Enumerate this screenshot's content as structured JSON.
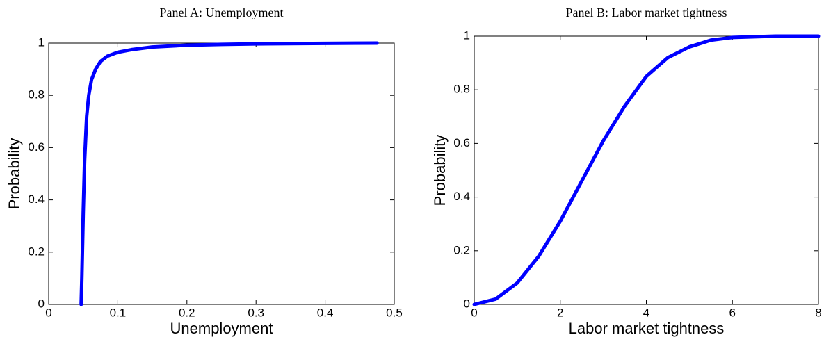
{
  "chart_data": [
    {
      "type": "line",
      "title": "Panel A: Unemployment",
      "xlabel": "Unemployment",
      "ylabel": "Probability",
      "x": [
        0.047,
        0.048,
        0.05,
        0.052,
        0.055,
        0.058,
        0.062,
        0.068,
        0.075,
        0.085,
        0.1,
        0.12,
        0.15,
        0.2,
        0.25,
        0.3,
        0.4,
        0.475
      ],
      "values": [
        0,
        0.1,
        0.35,
        0.55,
        0.72,
        0.8,
        0.86,
        0.9,
        0.93,
        0.95,
        0.965,
        0.975,
        0.985,
        0.992,
        0.995,
        0.997,
        0.999,
        1
      ],
      "color": "#0000ff",
      "xlim": [
        0,
        0.5
      ],
      "xticks": [
        0,
        0.1,
        0.2,
        0.3,
        0.4,
        0.5
      ],
      "ylim": [
        0,
        1
      ],
      "yticks": [
        0,
        0.2,
        0.4,
        0.6,
        0.8,
        1
      ]
    },
    {
      "type": "line",
      "title": "Panel B: Labor market tightness",
      "xlabel": "Labor market tightness",
      "ylabel": "Probability",
      "x": [
        0,
        0.5,
        1,
        1.5,
        2,
        2.5,
        3,
        3.5,
        4,
        4.5,
        5,
        5.5,
        6,
        7,
        8
      ],
      "values": [
        0,
        0.02,
        0.08,
        0.18,
        0.31,
        0.46,
        0.61,
        0.74,
        0.85,
        0.92,
        0.96,
        0.985,
        0.995,
        1,
        1
      ],
      "color": "#0000ff",
      "xlim": [
        0,
        8
      ],
      "xticks": [
        0,
        2,
        4,
        6,
        8
      ],
      "ylim": [
        0,
        1
      ],
      "yticks": [
        0,
        0.2,
        0.4,
        0.6,
        0.8,
        1
      ]
    }
  ]
}
